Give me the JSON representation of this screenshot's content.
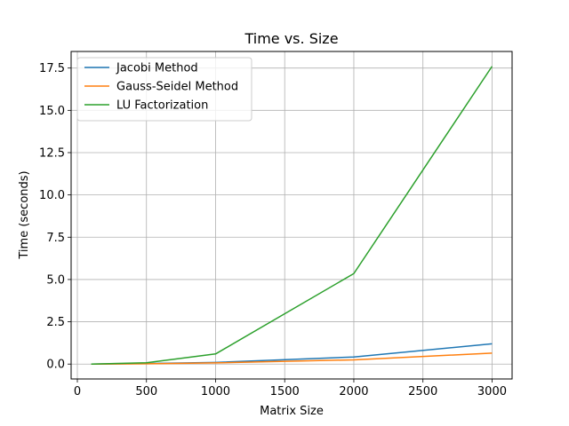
{
  "chart_data": {
    "type": "line",
    "title": "Time vs. Size",
    "xlabel": "Matrix Size",
    "ylabel": "Time (seconds)",
    "x": [
      100,
      500,
      1000,
      2000,
      3000
    ],
    "series": [
      {
        "name": "Jacobi Method",
        "color": "#1f77b4",
        "values": [
          0.0,
          0.03,
          0.1,
          0.42,
          1.2
        ]
      },
      {
        "name": "Gauss-Seidel Method",
        "color": "#ff7f0e",
        "values": [
          0.0,
          0.02,
          0.07,
          0.25,
          0.65
        ]
      },
      {
        "name": "LU Factorization",
        "color": "#2ca02c",
        "values": [
          0.0,
          0.08,
          0.6,
          5.35,
          17.6
        ]
      }
    ],
    "xlim": [
      -45,
      3145
    ],
    "ylim": [
      -0.88,
      18.48
    ],
    "xticks": [
      0,
      500,
      1000,
      1500,
      2000,
      2500,
      3000
    ],
    "xtick_labels": [
      "0",
      "500",
      "1000",
      "1500",
      "2000",
      "2500",
      "3000"
    ],
    "yticks": [
      0.0,
      2.5,
      5.0,
      7.5,
      10.0,
      12.5,
      15.0,
      17.5
    ],
    "ytick_labels": [
      "0.0",
      "2.5",
      "5.0",
      "7.5",
      "10.0",
      "12.5",
      "15.0",
      "17.5"
    ],
    "grid": true,
    "legend_position": "top-left"
  }
}
